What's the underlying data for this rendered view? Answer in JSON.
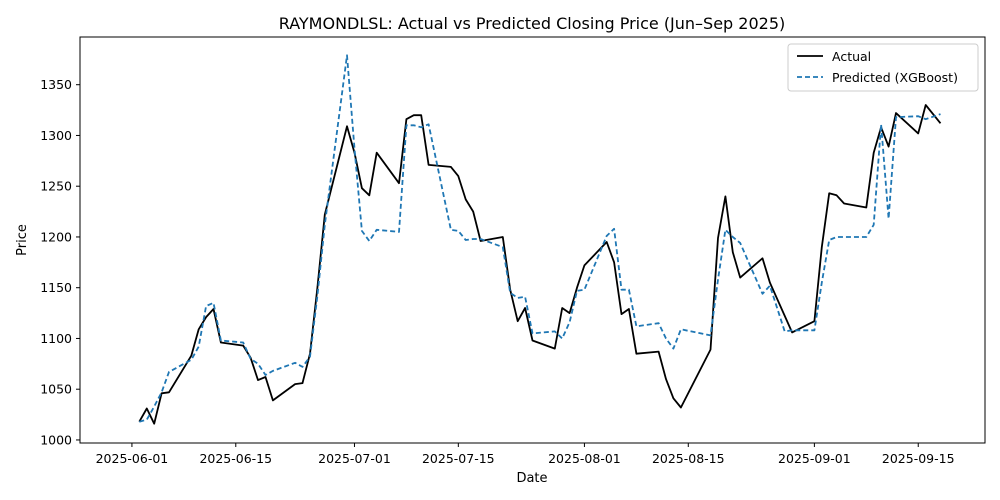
{
  "chart_data": {
    "type": "line",
    "title": "RAYMONDLSL: Actual vs Predicted Closing Price (Jun–Sep 2025)",
    "xlabel": "Date",
    "ylabel": "Price",
    "xlim": [
      "2025-05-25",
      "2025-09-24"
    ],
    "ylim": [
      997,
      1397
    ],
    "x_ticks": [
      "2025-06-01",
      "2025-06-15",
      "2025-07-01",
      "2025-07-15",
      "2025-08-01",
      "2025-08-15",
      "2025-09-01",
      "2025-09-15"
    ],
    "y_ticks": [
      1000,
      1050,
      1100,
      1150,
      1200,
      1250,
      1300,
      1350
    ],
    "grid": false,
    "legend_position": "upper-right",
    "series": [
      {
        "name": "Actual",
        "color": "#000000",
        "style": "solid",
        "points": [
          [
            "2025-06-02",
            1018
          ],
          [
            "2025-06-03",
            1031
          ],
          [
            "2025-06-04",
            1016
          ],
          [
            "2025-06-05",
            1046
          ],
          [
            "2025-06-06",
            1047
          ],
          [
            "2025-06-09",
            1083
          ],
          [
            "2025-06-10",
            1109
          ],
          [
            "2025-06-11",
            1121
          ],
          [
            "2025-06-12",
            1129
          ],
          [
            "2025-06-13",
            1096
          ],
          [
            "2025-06-16",
            1093
          ],
          [
            "2025-06-17",
            1081
          ],
          [
            "2025-06-18",
            1059
          ],
          [
            "2025-06-19",
            1062
          ],
          [
            "2025-06-20",
            1039
          ],
          [
            "2025-06-23",
            1055
          ],
          [
            "2025-06-24",
            1056
          ],
          [
            "2025-06-25",
            1085
          ],
          [
            "2025-06-26",
            1150
          ],
          [
            "2025-06-27",
            1222
          ],
          [
            "2025-06-30",
            1309
          ],
          [
            "2025-07-01",
            1283
          ],
          [
            "2025-07-02",
            1248
          ],
          [
            "2025-07-03",
            1241
          ],
          [
            "2025-07-04",
            1283
          ],
          [
            "2025-07-07",
            1253
          ],
          [
            "2025-07-08",
            1316
          ],
          [
            "2025-07-09",
            1320
          ],
          [
            "2025-07-10",
            1320
          ],
          [
            "2025-07-11",
            1271
          ],
          [
            "2025-07-14",
            1269
          ],
          [
            "2025-07-15",
            1260
          ],
          [
            "2025-07-16",
            1237
          ],
          [
            "2025-07-17",
            1225
          ],
          [
            "2025-07-18",
            1196
          ],
          [
            "2025-07-21",
            1200
          ],
          [
            "2025-07-22",
            1148
          ],
          [
            "2025-07-23",
            1117
          ],
          [
            "2025-07-24",
            1130
          ],
          [
            "2025-07-25",
            1098
          ],
          [
            "2025-07-28",
            1090
          ],
          [
            "2025-07-29",
            1130
          ],
          [
            "2025-07-30",
            1125
          ],
          [
            "2025-07-31",
            1150
          ],
          [
            "2025-08-01",
            1172
          ],
          [
            "2025-08-04",
            1195
          ],
          [
            "2025-08-05",
            1175
          ],
          [
            "2025-08-06",
            1124
          ],
          [
            "2025-08-07",
            1129
          ],
          [
            "2025-08-08",
            1085
          ],
          [
            "2025-08-11",
            1087
          ],
          [
            "2025-08-12",
            1060
          ],
          [
            "2025-08-13",
            1041
          ],
          [
            "2025-08-14",
            1032
          ],
          [
            "2025-08-18",
            1089
          ],
          [
            "2025-08-19",
            1199
          ],
          [
            "2025-08-20",
            1240
          ],
          [
            "2025-08-21",
            1185
          ],
          [
            "2025-08-22",
            1160
          ],
          [
            "2025-08-25",
            1179
          ],
          [
            "2025-08-26",
            1155
          ],
          [
            "2025-08-29",
            1106
          ],
          [
            "2025-09-01",
            1117
          ],
          [
            "2025-09-02",
            1190
          ],
          [
            "2025-09-03",
            1243
          ],
          [
            "2025-09-04",
            1241
          ],
          [
            "2025-09-05",
            1233
          ],
          [
            "2025-09-08",
            1229
          ],
          [
            "2025-09-09",
            1283
          ],
          [
            "2025-09-10",
            1308
          ],
          [
            "2025-09-11",
            1289
          ],
          [
            "2025-09-12",
            1322
          ],
          [
            "2025-09-15",
            1302
          ],
          [
            "2025-09-16",
            1330
          ],
          [
            "2025-09-18",
            1312
          ]
        ]
      },
      {
        "name": "Predicted (XGBoost)",
        "color": "#1f77b4",
        "style": "dashed",
        "points": [
          [
            "2025-06-02",
            1018
          ],
          [
            "2025-06-03",
            1020
          ],
          [
            "2025-06-04",
            1033
          ],
          [
            "2025-06-05",
            1047
          ],
          [
            "2025-06-06",
            1067
          ],
          [
            "2025-06-09",
            1079
          ],
          [
            "2025-06-10",
            1092
          ],
          [
            "2025-06-11",
            1132
          ],
          [
            "2025-06-12",
            1135
          ],
          [
            "2025-06-13",
            1098
          ],
          [
            "2025-06-16",
            1096
          ],
          [
            "2025-06-17",
            1080
          ],
          [
            "2025-06-18",
            1075
          ],
          [
            "2025-06-19",
            1064
          ],
          [
            "2025-06-20",
            1068
          ],
          [
            "2025-06-23",
            1076
          ],
          [
            "2025-06-24",
            1072
          ],
          [
            "2025-06-25",
            1082
          ],
          [
            "2025-06-26",
            1142
          ],
          [
            "2025-06-27",
            1212
          ],
          [
            "2025-06-30",
            1379
          ],
          [
            "2025-07-01",
            1287
          ],
          [
            "2025-07-02",
            1206
          ],
          [
            "2025-07-03",
            1196
          ],
          [
            "2025-07-04",
            1207
          ],
          [
            "2025-07-07",
            1205
          ],
          [
            "2025-07-08",
            1310
          ],
          [
            "2025-07-09",
            1310
          ],
          [
            "2025-07-10",
            1308
          ],
          [
            "2025-07-11",
            1311
          ],
          [
            "2025-07-14",
            1207
          ],
          [
            "2025-07-15",
            1206
          ],
          [
            "2025-07-16",
            1197
          ],
          [
            "2025-07-17",
            1198
          ],
          [
            "2025-07-18",
            1198
          ],
          [
            "2025-07-21",
            1190
          ],
          [
            "2025-07-22",
            1145
          ],
          [
            "2025-07-23",
            1140
          ],
          [
            "2025-07-24",
            1141
          ],
          [
            "2025-07-25",
            1105
          ],
          [
            "2025-07-28",
            1107
          ],
          [
            "2025-07-29",
            1100
          ],
          [
            "2025-07-30",
            1116
          ],
          [
            "2025-07-31",
            1147
          ],
          [
            "2025-08-01",
            1148
          ],
          [
            "2025-08-04",
            1201
          ],
          [
            "2025-08-05",
            1208
          ],
          [
            "2025-08-06",
            1148
          ],
          [
            "2025-08-07",
            1148
          ],
          [
            "2025-08-08",
            1112
          ],
          [
            "2025-08-11",
            1115
          ],
          [
            "2025-08-12",
            1100
          ],
          [
            "2025-08-13",
            1090
          ],
          [
            "2025-08-14",
            1109
          ],
          [
            "2025-08-18",
            1103
          ],
          [
            "2025-08-19",
            1158
          ],
          [
            "2025-08-20",
            1207
          ],
          [
            "2025-08-21",
            1200
          ],
          [
            "2025-08-22",
            1194
          ],
          [
            "2025-08-25",
            1144
          ],
          [
            "2025-08-26",
            1152
          ],
          [
            "2025-08-28",
            1107
          ],
          [
            "2025-08-29",
            1108
          ],
          [
            "2025-09-01",
            1108
          ],
          [
            "2025-09-02",
            1155
          ],
          [
            "2025-09-03",
            1197
          ],
          [
            "2025-09-04",
            1200
          ],
          [
            "2025-09-08",
            1200
          ],
          [
            "2025-09-09",
            1212
          ],
          [
            "2025-09-10",
            1311
          ],
          [
            "2025-09-11",
            1218
          ],
          [
            "2025-09-12",
            1318
          ],
          [
            "2025-09-15",
            1319
          ],
          [
            "2025-09-16",
            1316
          ],
          [
            "2025-09-18",
            1321
          ]
        ]
      }
    ]
  }
}
